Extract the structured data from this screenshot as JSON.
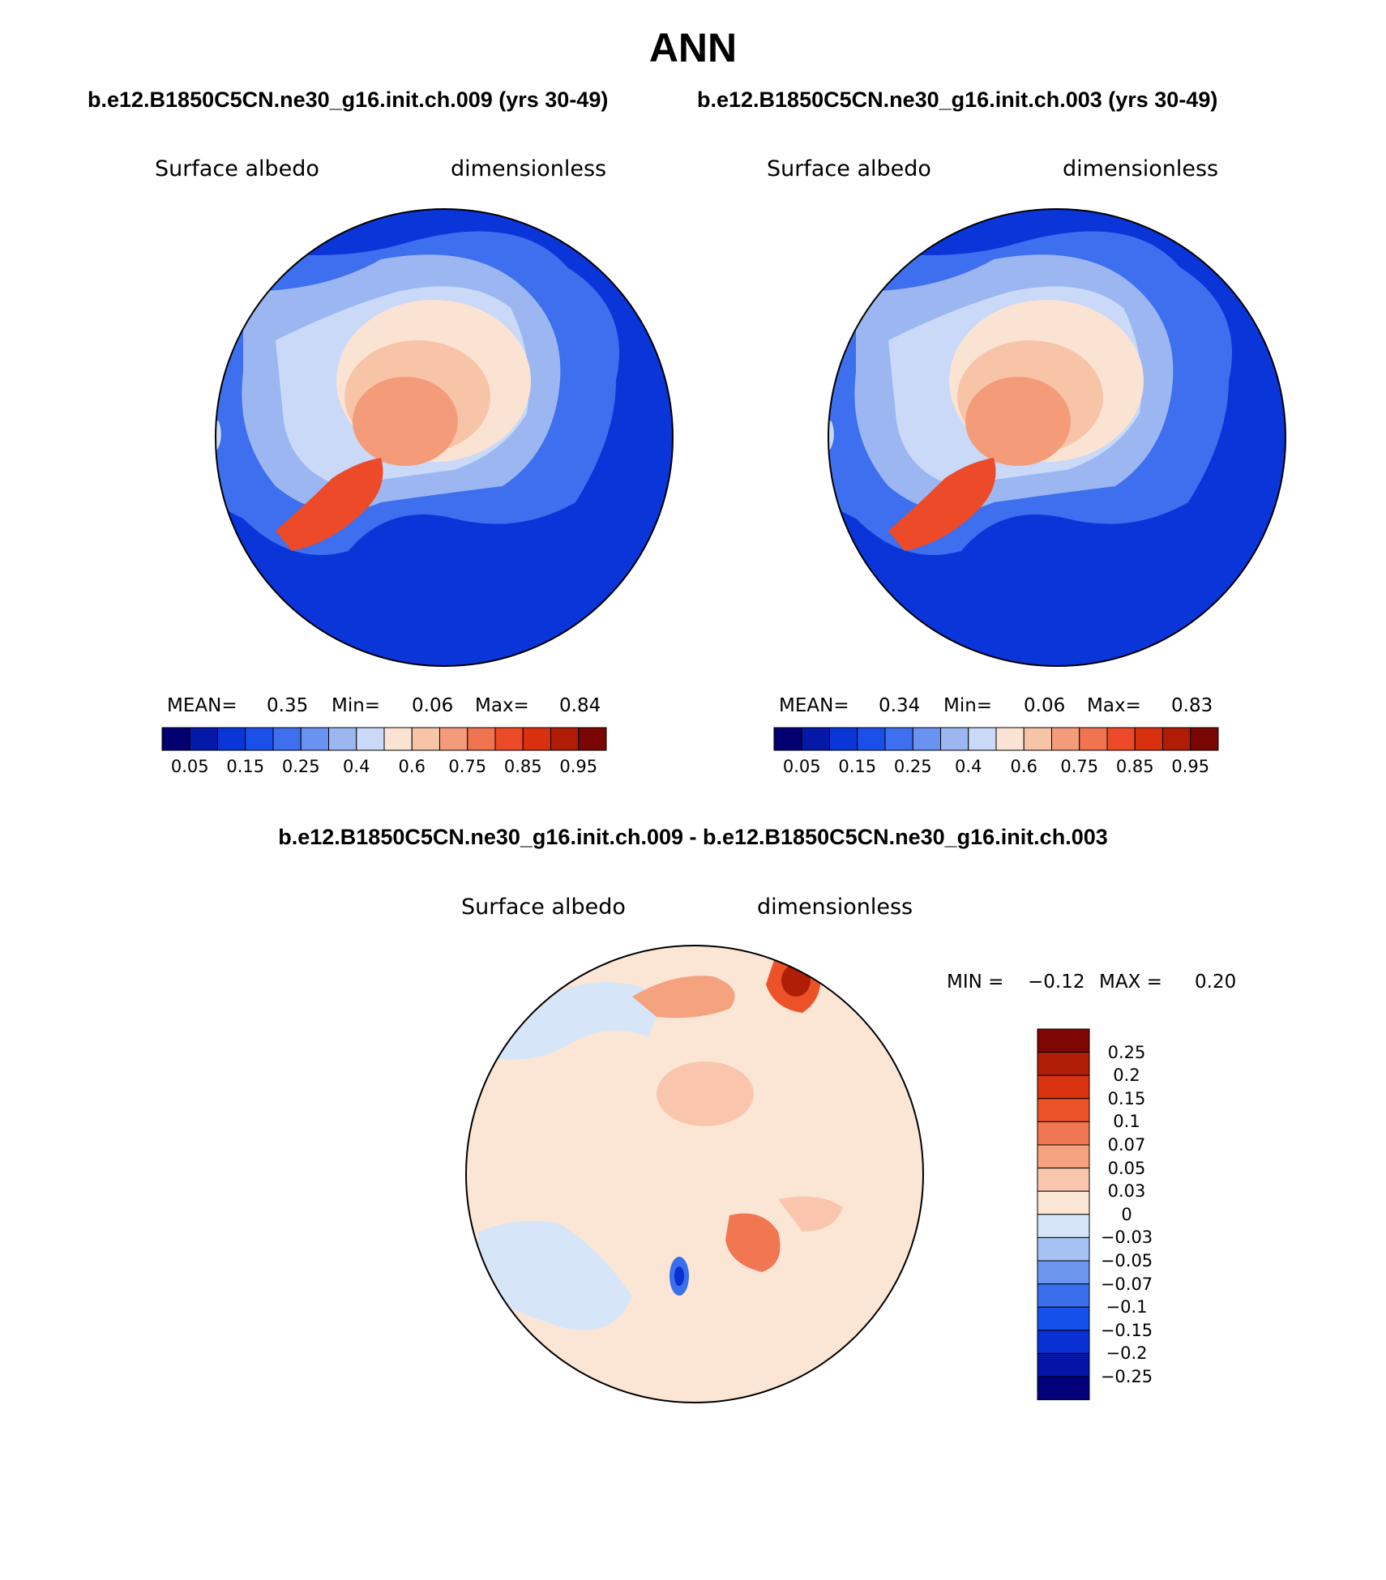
{
  "main_title": "ANN",
  "panels": [
    {
      "case_title": "b.e12.B1850C5CN.ne30_g16.init.ch.009 (yrs 30-49)",
      "left_label": "Surface albedo",
      "right_label": "dimensionless",
      "mean_label": "MEAN=",
      "mean": "0.35",
      "min_label": "Min=",
      "min": "0.06",
      "max_label": "Max=",
      "max": "0.84"
    },
    {
      "case_title": "b.e12.B1850C5CN.ne30_g16.init.ch.003 (yrs 30-49)",
      "left_label": "Surface albedo",
      "right_label": "dimensionless",
      "mean_label": "MEAN=",
      "mean": "0.34",
      "min_label": "Min=",
      "min": "0.06",
      "max_label": "Max=",
      "max": "0.83"
    }
  ],
  "diff_panel": {
    "title": "b.e12.B1850C5CN.ne30_g16.init.ch.009 - b.e12.B1850C5CN.ne30_g16.init.ch.003",
    "left_label": "Surface albedo",
    "right_label": "dimensionless",
    "min_label": "MIN =",
    "min": "−0.12",
    "max_label": "MAX =",
    "max": "0.20"
  },
  "albedo_colorbar": {
    "colors": [
      "#020070",
      "#0419a8",
      "#0a35d8",
      "#1a4fea",
      "#3d6fee",
      "#6a92f0",
      "#9cb6f2",
      "#c9d9f7",
      "#fbe3d3",
      "#f8c4a8",
      "#f49c7a",
      "#f0744f",
      "#ec4a28",
      "#d9310f",
      "#b01d07",
      "#7a0703"
    ],
    "tick_labels": [
      "0.05",
      "0.15",
      "0.25",
      "0.4",
      "0.6",
      "0.75",
      "0.85",
      "0.95"
    ]
  },
  "diff_colorbar": {
    "colors": [
      "#04007a",
      "#0414a8",
      "#0930d2",
      "#1650ea",
      "#3a6eec",
      "#6c95ee",
      "#a6c2f3",
      "#d6e6f8",
      "#fbe6d6",
      "#f9c6ad",
      "#f5a27f",
      "#f07751",
      "#ec5227",
      "#d9320e",
      "#b01e07",
      "#7e0603"
    ],
    "tick_labels": [
      "−0.25",
      "−0.2",
      "−0.15",
      "−0.1",
      "−0.07",
      "−0.05",
      "−0.03",
      "0",
      "0.03",
      "0.05",
      "0.07",
      "0.1",
      "0.15",
      "0.2",
      "0.25"
    ]
  }
}
